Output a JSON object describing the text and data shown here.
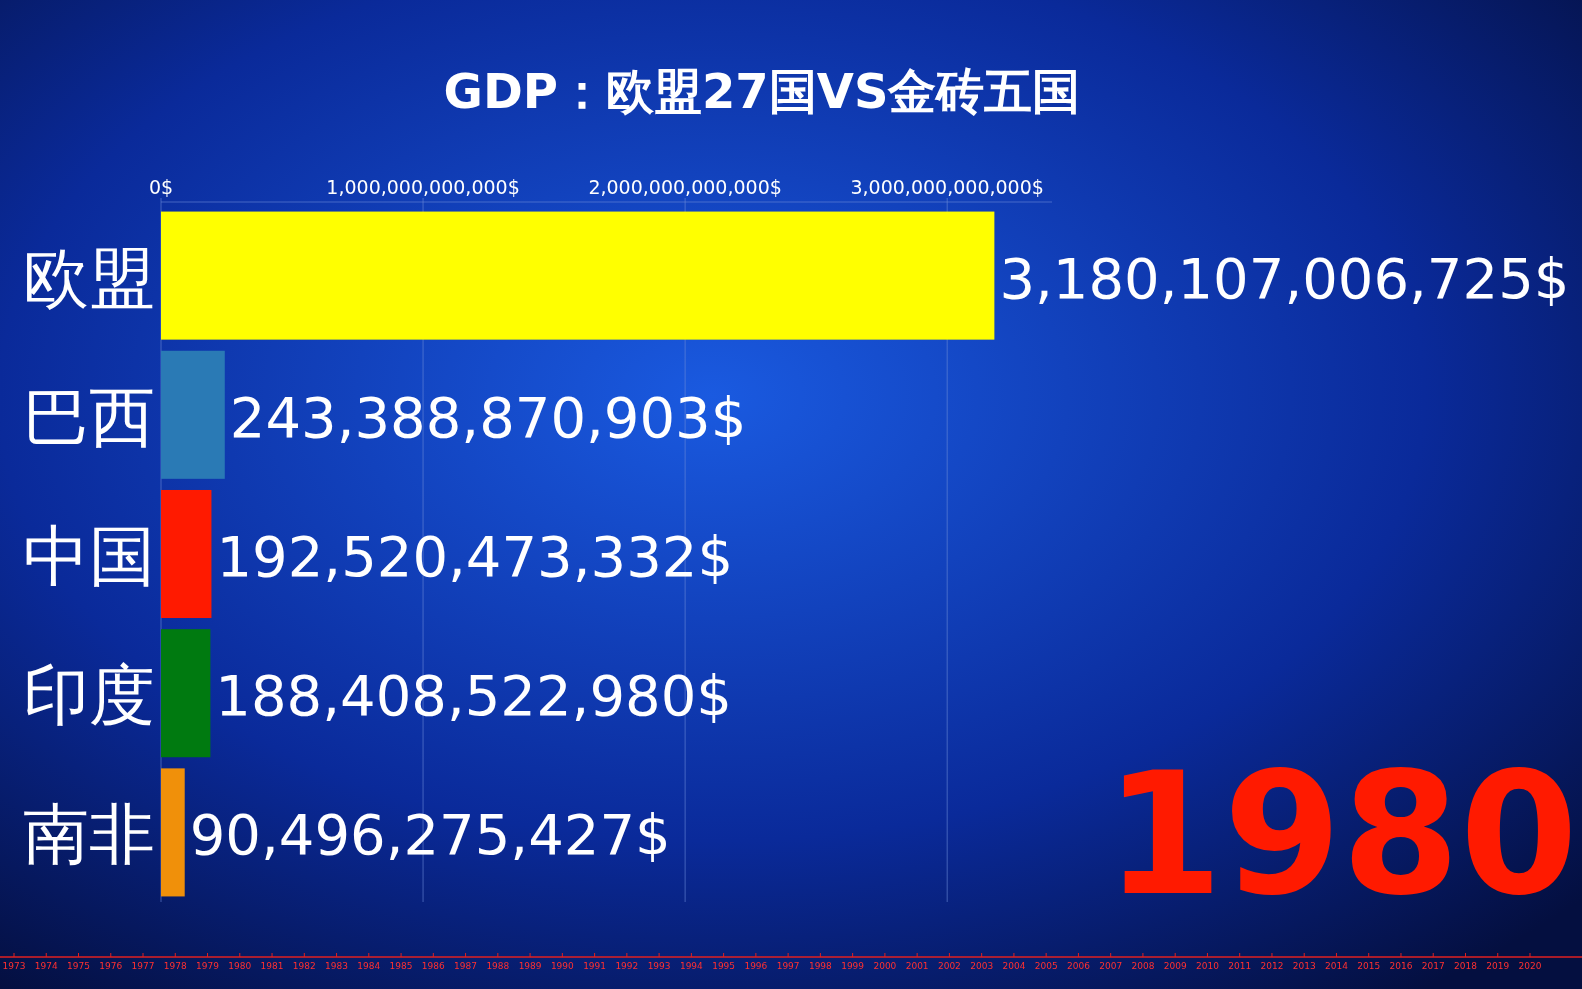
{
  "chart_data": {
    "type": "bar",
    "orientation": "horizontal",
    "title": "GDP：欧盟27国VS金砖五国",
    "categories": [
      "欧盟",
      "巴西",
      "中国",
      "印度",
      "南非"
    ],
    "values": [
      3180107006725,
      243388870903,
      192520473332,
      188408522980,
      90496275427
    ],
    "colors": [
      "#ffff00",
      "#2a7ab5",
      "#ff1a00",
      "#007a10",
      "#f0900a"
    ],
    "value_labels": [
      "3,180,107,006,725$",
      "243,388,870,903$",
      "192,520,473,332$",
      "188,408,522,980$",
      "90,496,275,427$"
    ],
    "xlim": [
      0,
      3400000000000
    ],
    "xticks": [
      {
        "value": 0,
        "label": "0$"
      },
      {
        "value": 1000000000000,
        "label": "1,000,000,000,000$"
      },
      {
        "value": 2000000000000,
        "label": "2,000,000,000,000$"
      },
      {
        "value": 3000000000000,
        "label": "3,000,000,000,000$"
      }
    ],
    "grid": "x",
    "annotations": [
      "1980",
      "1973",
      "1974",
      "1975",
      "1976",
      "1977",
      "1978",
      "1979",
      "1980",
      "1981",
      "1982",
      "1983",
      "1984",
      "1985",
      "1986",
      "1987",
      "1988",
      "1989",
      "1990",
      "1991",
      "1992",
      "1993",
      "1994",
      "1995",
      "1996",
      "1997",
      "1998",
      "1999",
      "2000",
      "2001",
      "2002",
      "2003",
      "2004",
      "2005",
      "2006",
      "2007",
      "2008",
      "2009",
      "2010",
      "2011",
      "2012",
      "2013",
      "2014",
      "2015",
      "2016",
      "2017",
      "2018",
      "2019",
      "2020"
    ]
  }
}
